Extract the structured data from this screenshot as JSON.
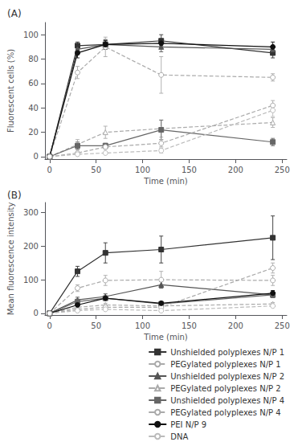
{
  "chart_data": [
    {
      "type": "line",
      "title": "(A)",
      "xlabel": "Time (min)",
      "ylabel": "Fluorescent cells (%)",
      "x": [
        0,
        30,
        60,
        120,
        240
      ],
      "xlim": [
        -5,
        255
      ],
      "xticks": [
        0,
        50,
        100,
        150,
        200,
        250
      ],
      "ylim": [
        -2,
        110
      ],
      "yticks": [
        0,
        20,
        40,
        60,
        80,
        100
      ],
      "grid": false,
      "series": [
        {
          "name": "Unshielded polyplexes N/P 1",
          "color": "#333333",
          "line_style": "solid",
          "marker": "square",
          "values": [
            0,
            91,
            92,
            95,
            85
          ],
          "errors": [
            0,
            3,
            4,
            5,
            4
          ]
        },
        {
          "name": "PEGylated polyplexes N/P 1",
          "color": "#aaaaaa",
          "line_style": "dashed",
          "marker": "circle_open",
          "values": [
            0,
            69,
            90,
            67,
            65
          ],
          "errors": [
            0,
            5,
            8,
            15,
            3
          ]
        },
        {
          "name": "Unshielded polyplexes N/P 2",
          "color": "#555555",
          "line_style": "solid",
          "marker": "triangle",
          "values": [
            0,
            88,
            92,
            90,
            88
          ],
          "errors": [
            0,
            4,
            3,
            4,
            3
          ]
        },
        {
          "name": "PEGylated polyplexes N/P 2",
          "color": "#aaaaaa",
          "line_style": "dashed",
          "marker": "triangle_open",
          "values": [
            0,
            10,
            20,
            23,
            28
          ],
          "errors": [
            0,
            4,
            5,
            7,
            4
          ]
        },
        {
          "name": "Unshielded polyplexes N/P 4",
          "color": "#666666",
          "line_style": "solid",
          "marker": "square",
          "values": [
            0,
            9,
            9,
            22,
            12
          ],
          "errors": [
            0,
            3,
            2,
            8,
            3
          ]
        },
        {
          "name": "PEGylated polyplexes N/P 4",
          "color": "#aaaaaa",
          "line_style": "dashed",
          "marker": "circle_open",
          "values": [
            0,
            3,
            8,
            11,
            42
          ],
          "errors": [
            0,
            1,
            2,
            3,
            4
          ]
        },
        {
          "name": "PEI N/P 9",
          "color": "#111111",
          "line_style": "solid",
          "marker": "circle",
          "values": [
            0,
            85,
            92,
            93,
            90
          ],
          "errors": [
            0,
            4,
            3,
            2,
            4
          ]
        },
        {
          "name": "DNA",
          "color": "#bbbbbb",
          "line_style": "dashed",
          "marker": "circle_open",
          "values": [
            0,
            2,
            3,
            5,
            38
          ],
          "errors": [
            0,
            0.5,
            1,
            2,
            5
          ]
        }
      ]
    },
    {
      "type": "line",
      "title": "(B)",
      "xlabel": "Time (min)",
      "ylabel": "Mean fluorescence intensity",
      "x": [
        0,
        30,
        60,
        120,
        240
      ],
      "xlim": [
        -5,
        255
      ],
      "xticks": [
        0,
        50,
        100,
        150,
        200,
        250
      ],
      "ylim": [
        -5,
        330
      ],
      "yticks": [
        0,
        100,
        200,
        300
      ],
      "grid": false,
      "legend": "bottom",
      "series": [
        {
          "name": "Unshielded polyplexes N/P 1",
          "color": "#333333",
          "line_style": "solid",
          "marker": "square",
          "values": [
            0,
            125,
            180,
            190,
            225
          ],
          "errors": [
            0,
            15,
            30,
            40,
            65
          ]
        },
        {
          "name": "PEGylated polyplexes N/P 1",
          "color": "#aaaaaa",
          "line_style": "dashed",
          "marker": "circle_open",
          "values": [
            0,
            75,
            98,
            100,
            98
          ],
          "errors": [
            0,
            10,
            15,
            25,
            15
          ]
        },
        {
          "name": "Unshielded polyplexes N/P 2",
          "color": "#555555",
          "line_style": "solid",
          "marker": "triangle",
          "values": [
            0,
            40,
            50,
            85,
            55
          ],
          "errors": [
            0,
            8,
            8,
            10,
            8
          ]
        },
        {
          "name": "PEGylated polyplexes N/P 2",
          "color": "#aaaaaa",
          "line_style": "dashed",
          "marker": "triangle_open",
          "values": [
            0,
            18,
            25,
            22,
            28
          ],
          "errors": [
            0,
            4,
            5,
            5,
            4
          ]
        },
        {
          "name": "Unshielded polyplexes N/P 4",
          "color": "#666666",
          "line_style": "solid",
          "marker": "square",
          "values": [
            0,
            35,
            45,
            28,
            55
          ],
          "errors": [
            0,
            5,
            5,
            5,
            8
          ]
        },
        {
          "name": "PEGylated polyplexes N/P 4",
          "color": "#aaaaaa",
          "line_style": "dashed",
          "marker": "circle_open",
          "values": [
            0,
            12,
            18,
            18,
            135
          ],
          "errors": [
            0,
            2,
            3,
            3,
            15
          ]
        },
        {
          "name": "PEI N/P 9",
          "color": "#111111",
          "line_style": "solid",
          "marker": "circle",
          "values": [
            0,
            25,
            45,
            30,
            60
          ],
          "errors": [
            0,
            4,
            5,
            5,
            8
          ]
        },
        {
          "name": "DNA",
          "color": "#bbbbbb",
          "line_style": "dashed",
          "marker": "circle_open",
          "values": [
            0,
            8,
            12,
            8,
            22
          ],
          "errors": [
            0,
            1,
            2,
            2,
            3
          ]
        }
      ]
    }
  ]
}
